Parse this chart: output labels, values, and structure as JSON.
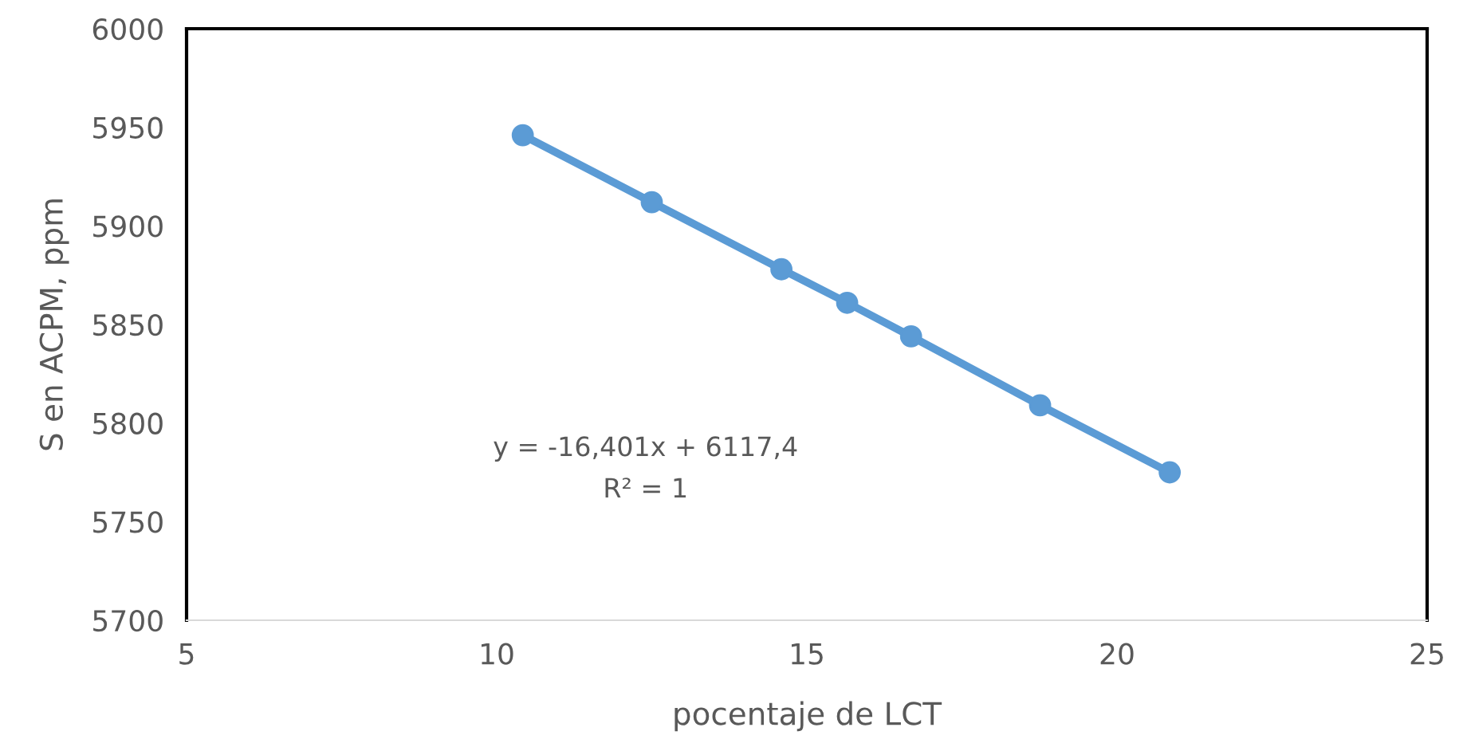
{
  "chart_data": {
    "type": "line",
    "xlabel": "pocentaje de LCT",
    "ylabel": "S en ACPM, ppm",
    "series": [
      {
        "color": "#5b9bd5",
        "x": [
          10.42,
          12.5,
          14.59,
          15.65,
          16.68,
          18.76,
          20.85
        ],
        "values": [
          5946,
          5912,
          5878,
          5861,
          5844,
          5809,
          5775
        ]
      }
    ],
    "marker": "circle",
    "line_style": "solid",
    "grid": false,
    "xlim": [
      5,
      25
    ],
    "xticks": [
      5,
      10,
      15,
      20,
      25
    ],
    "ylim": [
      5700,
      6000
    ],
    "yticks": [
      5700,
      5750,
      5800,
      5850,
      5900,
      5950,
      6000
    ],
    "annotations": [
      "y = -16,401x + 6117,4",
      "R² = 1"
    ]
  }
}
